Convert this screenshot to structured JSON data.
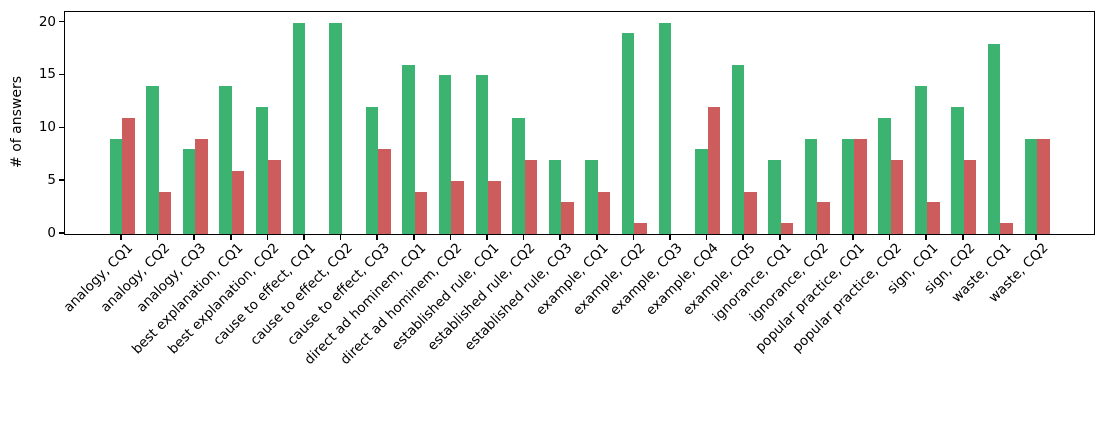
{
  "chart_data": {
    "type": "bar",
    "title": "",
    "xlabel": "",
    "ylabel": "# of answers",
    "ylim": [
      0,
      21
    ],
    "yticks": [
      0,
      5,
      10,
      15,
      20
    ],
    "grid": false,
    "legend": "none",
    "bar_colors": {
      "green": "#3cb371",
      "red": "#cd5c5c"
    },
    "categories": [
      "analogy, CQ1",
      "analogy, CQ2",
      "analogy, CQ3",
      "best explanation, CQ1",
      "best explanation, CQ2",
      "cause to effect, CQ1",
      "cause to effect, CQ2",
      "cause to effect, CQ3",
      "direct ad hominem, CQ1",
      "direct ad hominem, CQ2",
      "established rule, CQ1",
      "established rule, CQ2",
      "established rule, CQ3",
      "example, CQ1",
      "example, CQ2",
      "example, CQ3",
      "example, CQ4",
      "example, CQ5",
      "ignorance, CQ1",
      "ignorance, CQ2",
      "popular practice, CQ1",
      "popular practice, CQ2",
      "sign, CQ1",
      "sign, CQ2",
      "waste, CQ1",
      "waste, CQ2"
    ],
    "series": [
      {
        "name": "green",
        "color": "#3cb371",
        "values": [
          9,
          14,
          8,
          14,
          12,
          20,
          20,
          12,
          16,
          15,
          15,
          11,
          7,
          7,
          19,
          20,
          8,
          16,
          7,
          9,
          9,
          11,
          14,
          12,
          18,
          9
        ]
      },
      {
        "name": "red",
        "color": "#cd5c5c",
        "values": [
          11,
          4,
          9,
          6,
          7,
          0,
          0,
          8,
          4,
          5,
          5,
          7,
          3,
          4,
          1,
          0,
          12,
          4,
          1,
          3,
          9,
          7,
          3,
          7,
          1,
          9
        ]
      }
    ]
  }
}
